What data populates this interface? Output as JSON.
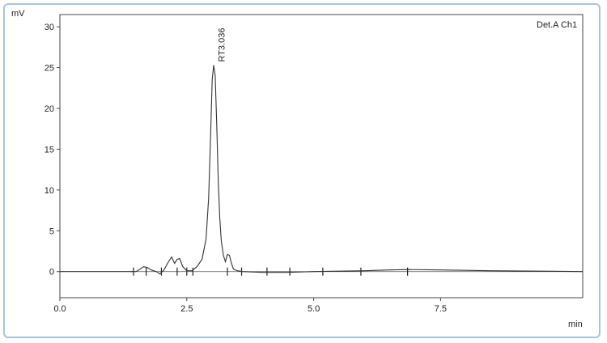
{
  "chart_data": {
    "type": "line",
    "ylabel": "mV",
    "xlabel": "min",
    "legend": "Det.A Ch1",
    "legend_position": "top-right",
    "grid": false,
    "xlim": [
      0,
      10.3
    ],
    "ylim": [
      -3.2,
      31.5
    ],
    "x_ticks": [
      0.0,
      2.5,
      5.0,
      7.5
    ],
    "x_tick_labels": [
      "0.0",
      "2.5",
      "5.0",
      "7.5"
    ],
    "y_ticks": [
      0,
      5,
      10,
      15,
      20,
      25,
      30
    ],
    "y_tick_labels": [
      "0",
      "5",
      "10",
      "15",
      "20",
      "25",
      "30"
    ],
    "series": [
      {
        "x": [
          0.0,
          1.4,
          1.5,
          1.58,
          1.65,
          1.72,
          1.8,
          1.9,
          1.97,
          2.05,
          2.12,
          2.2,
          2.26,
          2.31,
          2.36,
          2.42,
          2.5,
          2.6,
          2.7,
          2.8,
          2.88,
          2.93,
          2.97,
          3.0,
          3.03,
          3.06,
          3.09,
          3.12,
          3.15,
          3.18,
          3.22,
          3.26,
          3.3,
          3.34,
          3.38,
          3.42,
          3.5,
          3.6,
          4.0,
          4.5,
          5.0,
          5.5,
          6.0,
          6.5,
          6.85,
          7.5,
          8.5,
          9.5,
          10.3
        ],
        "y": [
          0.0,
          0.0,
          0.0,
          0.3,
          0.6,
          0.5,
          0.2,
          0.0,
          -0.3,
          0.2,
          1.0,
          1.8,
          1.0,
          1.5,
          1.6,
          0.6,
          0.1,
          0.1,
          0.6,
          1.5,
          4.0,
          9.0,
          17.0,
          23.5,
          25.3,
          24.0,
          18.0,
          11.0,
          6.5,
          3.8,
          2.0,
          1.2,
          2.1,
          2.0,
          1.0,
          0.3,
          0.1,
          0.0,
          -0.1,
          -0.1,
          0.0,
          0.05,
          0.1,
          0.2,
          0.25,
          0.2,
          0.1,
          0.05,
          0.0
        ]
      }
    ],
    "peak_markers_x": [
      1.45,
      1.7,
      2.0,
      2.31,
      2.5,
      2.62,
      3.3,
      3.58,
      4.08,
      4.53,
      5.18,
      5.93,
      6.85
    ],
    "annotations": [
      {
        "text": "RT3.036",
        "x": 3.036,
        "y": 25.3
      }
    ]
  }
}
